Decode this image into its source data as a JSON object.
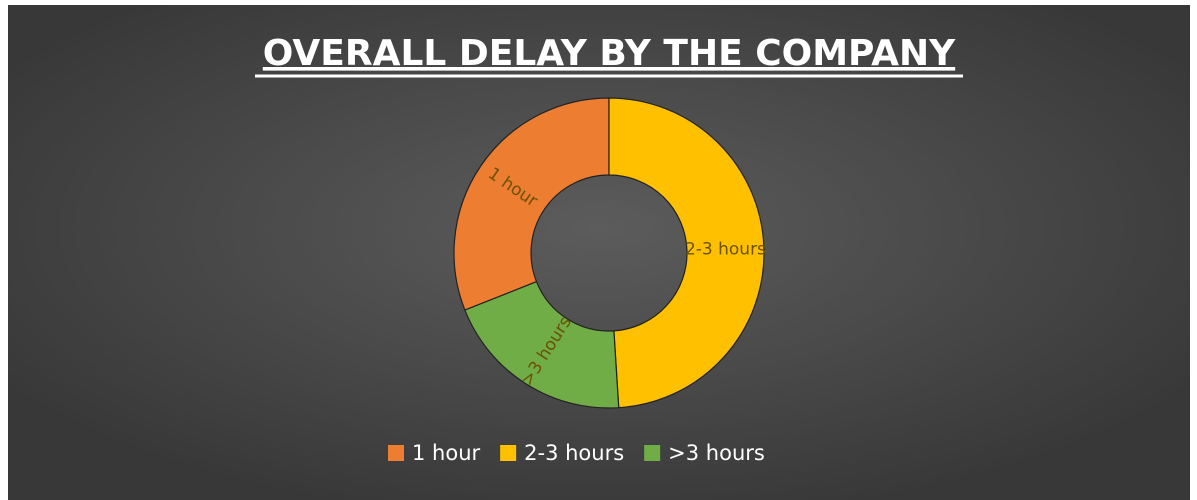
{
  "chart_data": {
    "type": "donut",
    "title": "OVERALL DELAY BY THE COMPANY",
    "categories": [
      "1 hour",
      "2-3 hours",
      ">3 hours"
    ],
    "values": [
      31,
      49,
      20
    ],
    "colors": [
      "#ed7d31",
      "#ffc000",
      "#70ad47"
    ],
    "legend": "bottom"
  }
}
